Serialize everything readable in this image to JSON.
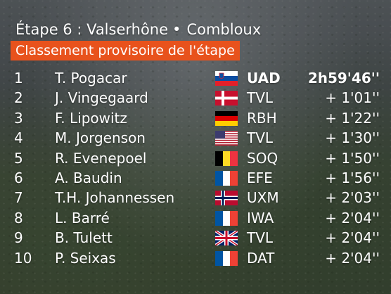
{
  "header": {
    "stage": "Étape 6 : Valserhône",
    "separator": "•",
    "finish": "Combloux",
    "banner": "Classement provisoire de l'étape"
  },
  "colors": {
    "banner": "#e8521c",
    "text": "#ffffff"
  },
  "rows": [
    {
      "rank": "1",
      "name": "T. Pogacar",
      "flag": "slovenia-flag-icon",
      "team": "UAD",
      "time": "2h59'46''"
    },
    {
      "rank": "2",
      "name": "J. Vingegaard",
      "flag": "denmark-flag-icon",
      "team": "TVL",
      "time": "+ 1'01''"
    },
    {
      "rank": "3",
      "name": "F. Lipowitz",
      "flag": "germany-flag-icon",
      "team": "RBH",
      "time": "+ 1'22''"
    },
    {
      "rank": "4",
      "name": "M. Jorgenson",
      "flag": "usa-flag-icon",
      "team": "TVL",
      "time": "+ 1'30''"
    },
    {
      "rank": "5",
      "name": "R. Evenepoel",
      "flag": "belgium-flag-icon",
      "team": "SOQ",
      "time": "+ 1'50''"
    },
    {
      "rank": "6",
      "name": "A. Baudin",
      "flag": "france-flag-icon",
      "team": "EFE",
      "time": "+ 1'56''"
    },
    {
      "rank": "7",
      "name": "T.H. Johannessen",
      "flag": "norway-flag-icon",
      "team": "UXM",
      "time": "+ 2'03''"
    },
    {
      "rank": "8",
      "name": "L. Barré",
      "flag": "france-flag-icon",
      "team": "IWA",
      "time": "+ 2'04''"
    },
    {
      "rank": "9",
      "name": "B. Tulett",
      "flag": "uk-flag-icon",
      "team": "TVL",
      "time": "+ 2'04''"
    },
    {
      "rank": "10",
      "name": "P. Seixas",
      "flag": "france-flag-icon",
      "team": "DAT",
      "time": "+ 2'04''"
    }
  ]
}
